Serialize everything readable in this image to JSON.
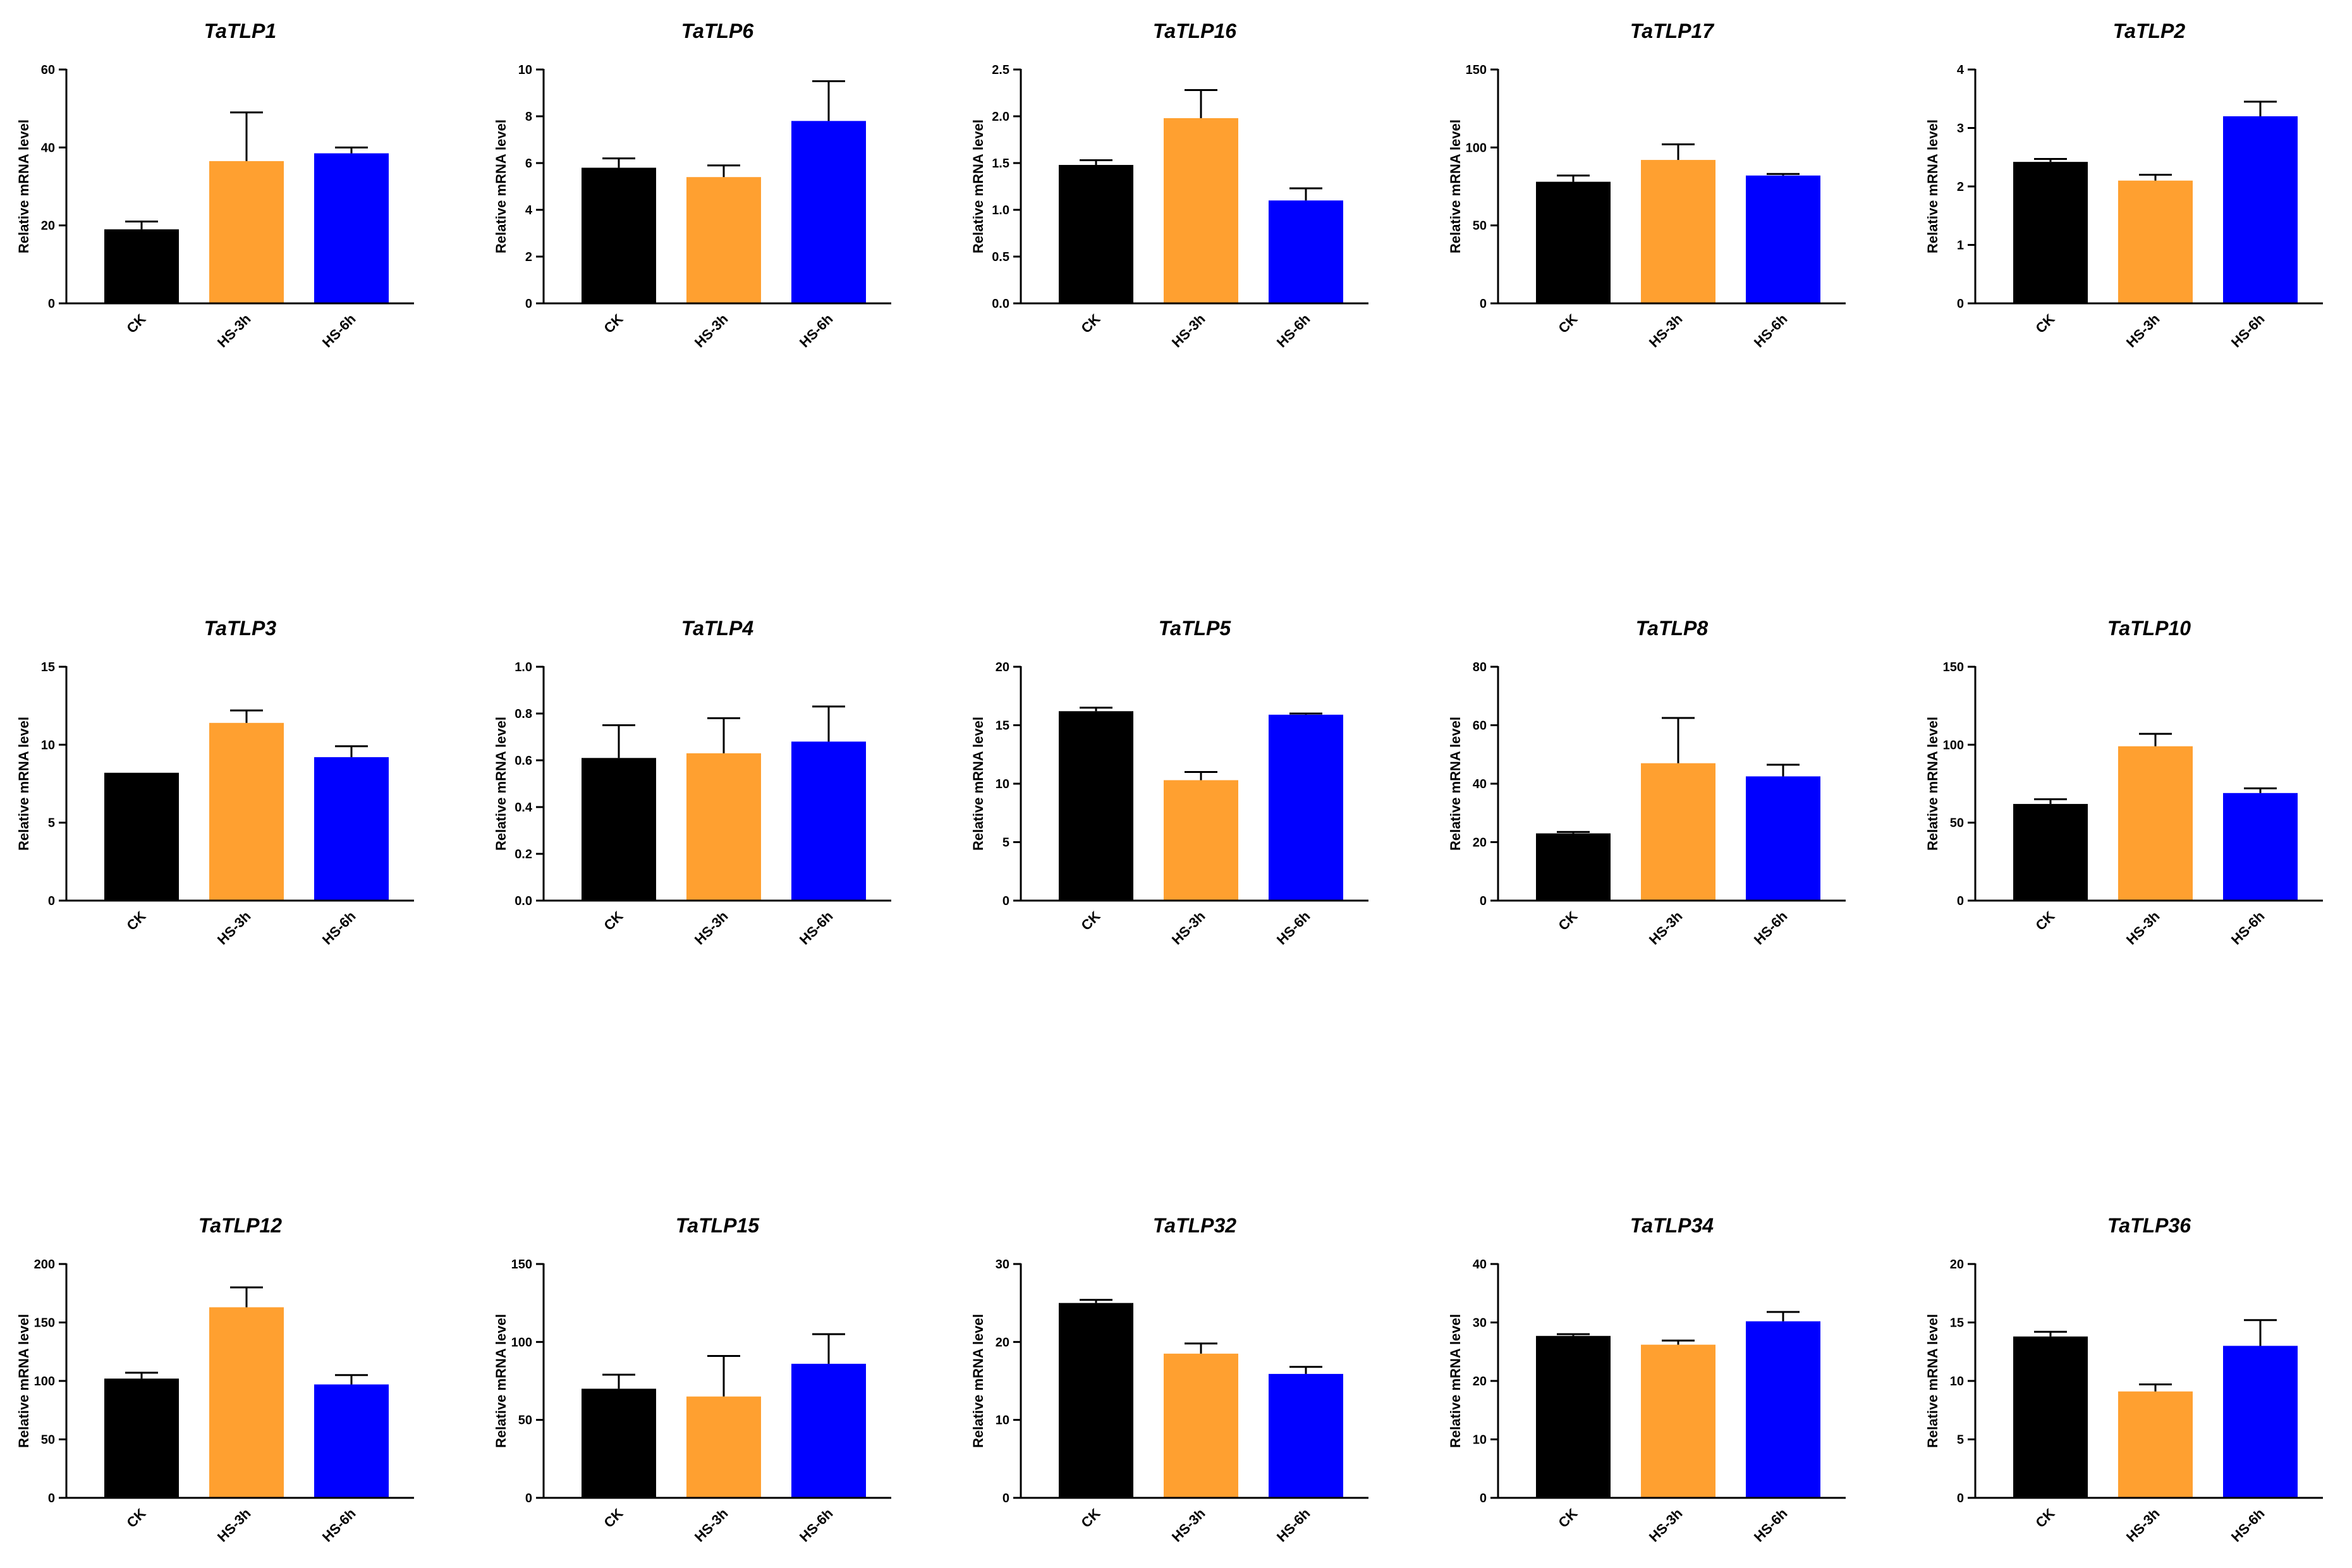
{
  "figure": {
    "colors": {
      "CK": "#000000",
      "HS-3h": "#FFA030",
      "HS-6h": "#0000FF",
      "errorbar": "#000000",
      "axis": "#000000"
    }
  },
  "chart_data": [
    {
      "type": "bar",
      "title": "TaTLP1",
      "ylabel": "Relative mRNA level",
      "categories": [
        "CK",
        "HS-3h",
        "HS-6h"
      ],
      "values": [
        19,
        36.5,
        38.5
      ],
      "errors": [
        2,
        12.5,
        1.5
      ],
      "ylim": [
        0,
        60
      ],
      "yticks": [
        0,
        20,
        40,
        60
      ],
      "ytick_labels": [
        "0",
        "20",
        "40",
        "60"
      ],
      "grid": false
    },
    {
      "type": "bar",
      "title": "TaTLP6",
      "ylabel": "Relative mRNA level",
      "categories": [
        "CK",
        "HS-3h",
        "HS-6h"
      ],
      "values": [
        5.8,
        5.4,
        7.8
      ],
      "errors": [
        0.4,
        0.5,
        1.7
      ],
      "ylim": [
        0,
        10
      ],
      "yticks": [
        0,
        2,
        4,
        6,
        8,
        10
      ],
      "ytick_labels": [
        "0",
        "2",
        "4",
        "6",
        "8",
        "10"
      ],
      "grid": false
    },
    {
      "type": "bar",
      "title": "TaTLP16",
      "ylabel": "Relative mRNA level",
      "categories": [
        "CK",
        "HS-3h",
        "HS-6h"
      ],
      "values": [
        1.48,
        1.98,
        1.1
      ],
      "errors": [
        0.05,
        0.3,
        0.13
      ],
      "ylim": [
        0,
        2.5
      ],
      "yticks": [
        0,
        0.5,
        1,
        1.5,
        2,
        2.5
      ],
      "ytick_labels": [
        "0.0",
        "0.5",
        "1.0",
        "1.5",
        "2.0",
        "2.5"
      ],
      "grid": false
    },
    {
      "type": "bar",
      "title": "TaTLP17",
      "ylabel": "Relative mRNA level",
      "categories": [
        "CK",
        "HS-3h",
        "HS-6h"
      ],
      "values": [
        78,
        92,
        82
      ],
      "errors": [
        4,
        10,
        1
      ],
      "ylim": [
        0,
        150
      ],
      "yticks": [
        0,
        50,
        100,
        150
      ],
      "ytick_labels": [
        "0",
        "50",
        "100",
        "150"
      ],
      "grid": false
    },
    {
      "type": "bar",
      "title": "TaTLP2",
      "ylabel": "Relative mRNA level",
      "categories": [
        "CK",
        "HS-3h",
        "HS-6h"
      ],
      "values": [
        2.42,
        2.1,
        3.2
      ],
      "errors": [
        0.05,
        0.1,
        0.25
      ],
      "ylim": [
        0,
        4
      ],
      "yticks": [
        0,
        1,
        2,
        3,
        4
      ],
      "ytick_labels": [
        "0",
        "1",
        "2",
        "3",
        "4"
      ],
      "grid": false
    },
    {
      "type": "bar",
      "title": "TaTLP3",
      "ylabel": "Relative mRNA level",
      "categories": [
        "CK",
        "HS-3h",
        "HS-6h"
      ],
      "values": [
        8.2,
        11.4,
        9.2
      ],
      "errors": [
        0,
        0.8,
        0.7
      ],
      "ylim": [
        0,
        15
      ],
      "yticks": [
        0,
        5,
        10,
        15
      ],
      "ytick_labels": [
        "0",
        "5",
        "10",
        "15"
      ],
      "grid": false
    },
    {
      "type": "bar",
      "title": "TaTLP4",
      "ylabel": "Relative mRNA level",
      "categories": [
        "CK",
        "HS-3h",
        "HS-6h"
      ],
      "values": [
        0.61,
        0.63,
        0.68
      ],
      "errors": [
        0.14,
        0.15,
        0.15
      ],
      "ylim": [
        0,
        1
      ],
      "yticks": [
        0,
        0.2,
        0.4,
        0.6,
        0.8,
        1
      ],
      "ytick_labels": [
        "0.0",
        "0.2",
        "0.4",
        "0.6",
        "0.8",
        "1.0"
      ],
      "grid": false
    },
    {
      "type": "bar",
      "title": "TaTLP5",
      "ylabel": "Relative mRNA level",
      "categories": [
        "CK",
        "HS-3h",
        "HS-6h"
      ],
      "values": [
        16.2,
        10.3,
        15.9
      ],
      "errors": [
        0.3,
        0.7,
        0.1
      ],
      "ylim": [
        0,
        20
      ],
      "yticks": [
        0,
        5,
        10,
        15,
        20
      ],
      "ytick_labels": [
        "0",
        "5",
        "10",
        "15",
        "20"
      ],
      "grid": false
    },
    {
      "type": "bar",
      "title": "TaTLP8",
      "ylabel": "Relative mRNA level",
      "categories": [
        "CK",
        "HS-3h",
        "HS-6h"
      ],
      "values": [
        23,
        47,
        42.5
      ],
      "errors": [
        0.5,
        15.5,
        4
      ],
      "ylim": [
        0,
        80
      ],
      "yticks": [
        0,
        20,
        40,
        60,
        80
      ],
      "ytick_labels": [
        "0",
        "20",
        "40",
        "60",
        "80"
      ],
      "grid": false
    },
    {
      "type": "bar",
      "title": "TaTLP10",
      "ylabel": "Relative mRNA level",
      "categories": [
        "CK",
        "HS-3h",
        "HS-6h"
      ],
      "values": [
        62,
        99,
        69
      ],
      "errors": [
        3,
        8,
        3
      ],
      "ylim": [
        0,
        150
      ],
      "yticks": [
        0,
        50,
        100,
        150
      ],
      "ytick_labels": [
        "0",
        "50",
        "100",
        "150"
      ],
      "grid": false
    },
    {
      "type": "bar",
      "title": "TaTLP12",
      "ylabel": "Relative mRNA level",
      "categories": [
        "CK",
        "HS-3h",
        "HS-6h"
      ],
      "values": [
        102,
        163,
        97
      ],
      "errors": [
        5,
        17,
        8
      ],
      "ylim": [
        0,
        200
      ],
      "yticks": [
        0,
        50,
        100,
        150,
        200
      ],
      "ytick_labels": [
        "0",
        "50",
        "100",
        "150",
        "200"
      ],
      "grid": false
    },
    {
      "type": "bar",
      "title": "TaTLP15",
      "ylabel": "Relative mRNA level",
      "categories": [
        "CK",
        "HS-3h",
        "HS-6h"
      ],
      "values": [
        70,
        65,
        86
      ],
      "errors": [
        9,
        26,
        19
      ],
      "ylim": [
        0,
        150
      ],
      "yticks": [
        0,
        50,
        100,
        150
      ],
      "ytick_labels": [
        "0",
        "50",
        "100",
        "150"
      ],
      "grid": false
    },
    {
      "type": "bar",
      "title": "TaTLP32",
      "ylabel": "Relative mRNA level",
      "categories": [
        "CK",
        "HS-3h",
        "HS-6h"
      ],
      "values": [
        25,
        18.5,
        15.9
      ],
      "errors": [
        0.4,
        1.3,
        0.9
      ],
      "ylim": [
        0,
        30
      ],
      "yticks": [
        0,
        10,
        20,
        30
      ],
      "ytick_labels": [
        "0",
        "10",
        "20",
        "30"
      ],
      "grid": false
    },
    {
      "type": "bar",
      "title": "TaTLP34",
      "ylabel": "Relative mRNA level",
      "categories": [
        "CK",
        "HS-3h",
        "HS-6h"
      ],
      "values": [
        27.7,
        26.2,
        30.2
      ],
      "errors": [
        0.3,
        0.7,
        1.6
      ],
      "ylim": [
        0,
        40
      ],
      "yticks": [
        0,
        10,
        20,
        30,
        40
      ],
      "ytick_labels": [
        "0",
        "10",
        "20",
        "30",
        "40"
      ],
      "grid": false
    },
    {
      "type": "bar",
      "title": "TaTLP36",
      "ylabel": "Relative mRNA level",
      "categories": [
        "CK",
        "HS-3h",
        "HS-6h"
      ],
      "values": [
        13.8,
        9.1,
        13
      ],
      "errors": [
        0.4,
        0.6,
        2.2
      ],
      "ylim": [
        0,
        20
      ],
      "yticks": [
        0,
        5,
        10,
        15,
        20
      ],
      "ytick_labels": [
        "0",
        "5",
        "10",
        "15",
        "20"
      ],
      "grid": false
    }
  ]
}
